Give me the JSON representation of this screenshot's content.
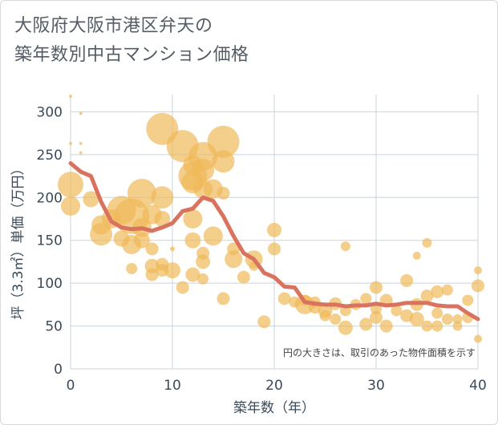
{
  "title_line1": "大阪府大阪市港区弁天の",
  "title_line2": "築年数別中古マンション価格",
  "chart_data": {
    "type": "scatter",
    "xlabel": "築年数（年）",
    "ylabel": "坪（3.3㎡）単価（万円）",
    "xlim": [
      0,
      40
    ],
    "ylim": [
      0,
      320
    ],
    "x_ticks": [
      0,
      10,
      20,
      30,
      40
    ],
    "y_ticks": [
      0,
      50,
      100,
      150,
      200,
      250,
      300
    ],
    "note": "円の大きさは、取引のあった物件面積を示す",
    "colors": {
      "bubble": "#f0b95a",
      "line": "#d9735f",
      "grid": "#c9d3dc"
    },
    "trend_line": {
      "x": [
        0,
        1,
        2,
        3,
        4,
        5,
        6,
        7,
        8,
        9,
        10,
        11,
        12,
        13,
        14,
        15,
        16,
        17,
        18,
        19,
        20,
        21,
        22,
        23,
        24,
        25,
        26,
        27,
        28,
        29,
        30,
        31,
        32,
        33,
        34,
        35,
        36,
        37,
        38,
        39,
        40
      ],
      "y": [
        240,
        230,
        225,
        195,
        172,
        165,
        163,
        164,
        161,
        165,
        170,
        184,
        187,
        200,
        196,
        178,
        155,
        135,
        128,
        112,
        107,
        96,
        95,
        78,
        76,
        75,
        75,
        73,
        74,
        74,
        76,
        74,
        75,
        77,
        77,
        77,
        74,
        73,
        73,
        65,
        58
      ]
    },
    "bubbles": [
      {
        "x": 0,
        "y": 215,
        "s": 16
      },
      {
        "x": 0,
        "y": 190,
        "s": 12
      },
      {
        "x": 0,
        "y": 263,
        "s": 2
      },
      {
        "x": 0,
        "y": 318,
        "s": 2
      },
      {
        "x": 1,
        "y": 263,
        "s": 2
      },
      {
        "x": 1,
        "y": 252,
        "s": 2
      },
      {
        "x": 1,
        "y": 298,
        "s": 2
      },
      {
        "x": 2,
        "y": 198,
        "s": 10
      },
      {
        "x": 3,
        "y": 168,
        "s": 12
      },
      {
        "x": 3,
        "y": 157,
        "s": 14
      },
      {
        "x": 4,
        "y": 175,
        "s": 12
      },
      {
        "x": 5,
        "y": 152,
        "s": 10
      },
      {
        "x": 5,
        "y": 185,
        "s": 18
      },
      {
        "x": 6,
        "y": 178,
        "s": 22
      },
      {
        "x": 6,
        "y": 145,
        "s": 12
      },
      {
        "x": 6,
        "y": 117,
        "s": 7
      },
      {
        "x": 7,
        "y": 205,
        "s": 18
      },
      {
        "x": 7,
        "y": 165,
        "s": 12
      },
      {
        "x": 7,
        "y": 150,
        "s": 10
      },
      {
        "x": 8,
        "y": 180,
        "s": 12
      },
      {
        "x": 8,
        "y": 140,
        "s": 8
      },
      {
        "x": 8,
        "y": 120,
        "s": 9
      },
      {
        "x": 8,
        "y": 110,
        "s": 8
      },
      {
        "x": 9,
        "y": 280,
        "s": 20
      },
      {
        "x": 9,
        "y": 200,
        "s": 14
      },
      {
        "x": 9,
        "y": 175,
        "s": 10
      },
      {
        "x": 9,
        "y": 122,
        "s": 8
      },
      {
        "x": 9,
        "y": 115,
        "s": 8
      },
      {
        "x": 10,
        "y": 140,
        "s": 3
      },
      {
        "x": 10,
        "y": 115,
        "s": 10
      },
      {
        "x": 11,
        "y": 260,
        "s": 20
      },
      {
        "x": 11,
        "y": 95,
        "s": 8
      },
      {
        "x": 12,
        "y": 238,
        "s": 12
      },
      {
        "x": 12,
        "y": 225,
        "s": 18
      },
      {
        "x": 12,
        "y": 218,
        "s": 14
      },
      {
        "x": 12,
        "y": 175,
        "s": 12
      },
      {
        "x": 12,
        "y": 150,
        "s": 10
      },
      {
        "x": 12,
        "y": 110,
        "s": 9
      },
      {
        "x": 13,
        "y": 248,
        "s": 18
      },
      {
        "x": 13,
        "y": 232,
        "s": 14
      },
      {
        "x": 13,
        "y": 210,
        "s": 12
      },
      {
        "x": 13,
        "y": 135,
        "s": 8
      },
      {
        "x": 13,
        "y": 125,
        "s": 9
      },
      {
        "x": 13,
        "y": 105,
        "s": 7
      },
      {
        "x": 14,
        "y": 210,
        "s": 12
      },
      {
        "x": 14,
        "y": 155,
        "s": 12
      },
      {
        "x": 15,
        "y": 265,
        "s": 20
      },
      {
        "x": 15,
        "y": 242,
        "s": 14
      },
      {
        "x": 15,
        "y": 205,
        "s": 8
      },
      {
        "x": 15,
        "y": 82,
        "s": 8
      },
      {
        "x": 16,
        "y": 140,
        "s": 8
      },
      {
        "x": 16,
        "y": 128,
        "s": 11
      },
      {
        "x": 17,
        "y": 107,
        "s": 8
      },
      {
        "x": 18,
        "y": 128,
        "s": 11
      },
      {
        "x": 18,
        "y": 120,
        "s": 6
      },
      {
        "x": 19,
        "y": 55,
        "s": 8
      },
      {
        "x": 20,
        "y": 162,
        "s": 9
      },
      {
        "x": 20,
        "y": 140,
        "s": 8
      },
      {
        "x": 21,
        "y": 82,
        "s": 8
      },
      {
        "x": 22,
        "y": 78,
        "s": 7
      },
      {
        "x": 23,
        "y": 75,
        "s": 12
      },
      {
        "x": 23,
        "y": 80,
        "s": 7
      },
      {
        "x": 24,
        "y": 72,
        "s": 8
      },
      {
        "x": 24,
        "y": 78,
        "s": 7
      },
      {
        "x": 25,
        "y": 68,
        "s": 9
      },
      {
        "x": 25,
        "y": 62,
        "s": 7
      },
      {
        "x": 26,
        "y": 76,
        "s": 8
      },
      {
        "x": 26,
        "y": 58,
        "s": 7
      },
      {
        "x": 27,
        "y": 48,
        "s": 9
      },
      {
        "x": 27,
        "y": 143,
        "s": 6
      },
      {
        "x": 27,
        "y": 68,
        "s": 7
      },
      {
        "x": 28,
        "y": 75,
        "s": 7
      },
      {
        "x": 29,
        "y": 52,
        "s": 8
      },
      {
        "x": 29,
        "y": 82,
        "s": 7
      },
      {
        "x": 30,
        "y": 95,
        "s": 8
      },
      {
        "x": 30,
        "y": 60,
        "s": 8
      },
      {
        "x": 30,
        "y": 70,
        "s": 7
      },
      {
        "x": 31,
        "y": 50,
        "s": 8
      },
      {
        "x": 31,
        "y": 80,
        "s": 8
      },
      {
        "x": 32,
        "y": 68,
        "s": 7
      },
      {
        "x": 33,
        "y": 103,
        "s": 8
      },
      {
        "x": 33,
        "y": 62,
        "s": 8
      },
      {
        "x": 34,
        "y": 132,
        "s": 5
      },
      {
        "x": 34,
        "y": 58,
        "s": 9
      },
      {
        "x": 34,
        "y": 75,
        "s": 8
      },
      {
        "x": 35,
        "y": 147,
        "s": 6
      },
      {
        "x": 35,
        "y": 85,
        "s": 8
      },
      {
        "x": 35,
        "y": 50,
        "s": 7
      },
      {
        "x": 36,
        "y": 90,
        "s": 8
      },
      {
        "x": 36,
        "y": 50,
        "s": 7
      },
      {
        "x": 36,
        "y": 65,
        "s": 7
      },
      {
        "x": 37,
        "y": 92,
        "s": 7
      },
      {
        "x": 37,
        "y": 58,
        "s": 7
      },
      {
        "x": 38,
        "y": 50,
        "s": 6
      },
      {
        "x": 38,
        "y": 58,
        "s": 6
      },
      {
        "x": 39,
        "y": 80,
        "s": 7
      },
      {
        "x": 39,
        "y": 60,
        "s": 7
      },
      {
        "x": 40,
        "y": 97,
        "s": 8
      },
      {
        "x": 40,
        "y": 115,
        "s": 5
      },
      {
        "x": 40,
        "y": 35,
        "s": 5
      }
    ]
  }
}
